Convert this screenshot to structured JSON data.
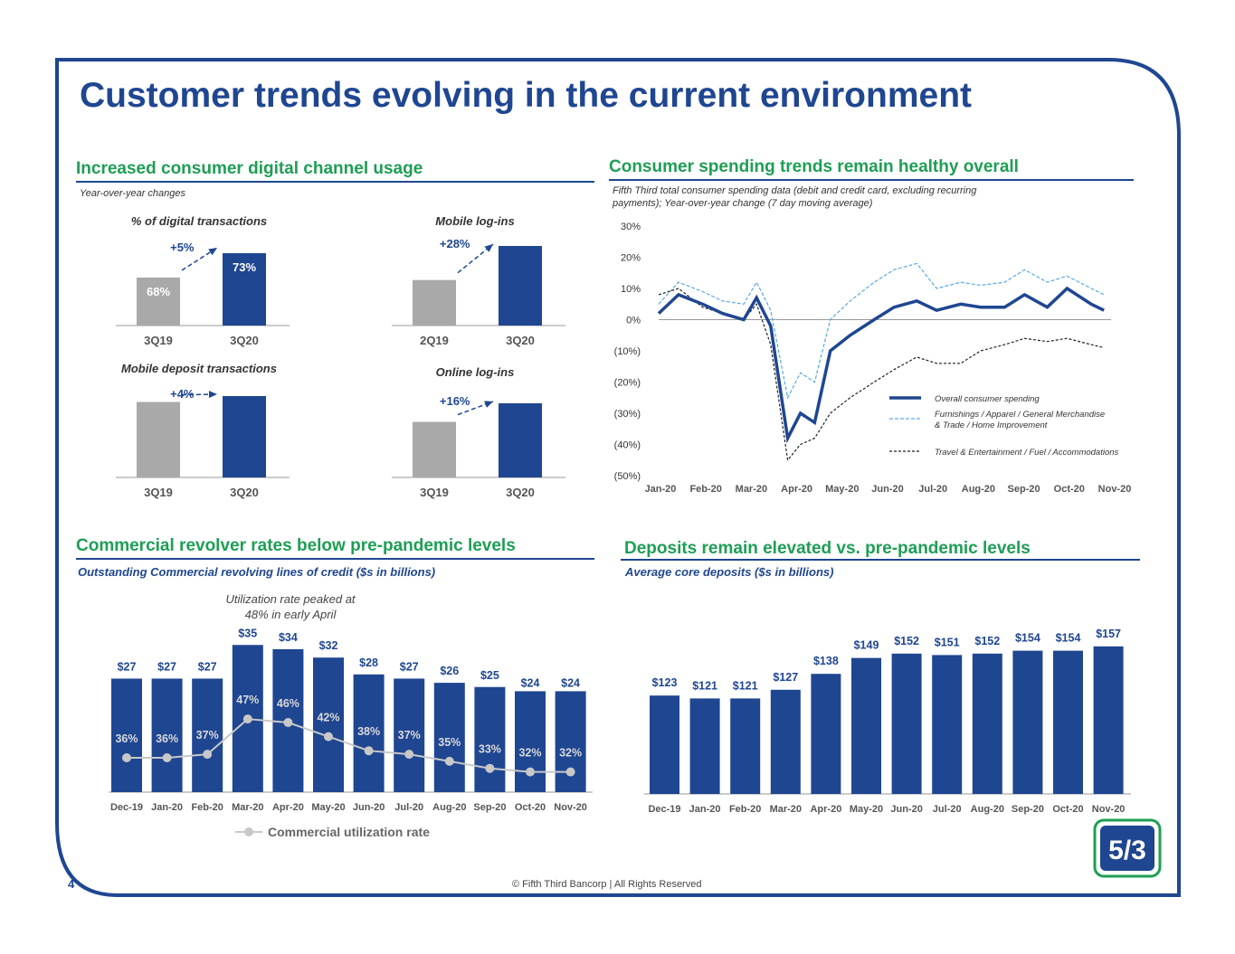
{
  "page": {
    "title": "Customer trends evolving in the current environment",
    "page_number": "4",
    "footer": "© Fifth Third Bancorp | All Rights Reserved",
    "logo": "fifth-third-logo"
  },
  "colors": {
    "navy": "#1f4691",
    "green": "#1e9e55",
    "gray_bar": "#a9a9a9",
    "light_blue": "#5aa9e6"
  },
  "sections": {
    "digital": {
      "title": "Increased consumer digital channel usage",
      "subtitle": "Year-over-year changes"
    },
    "spending": {
      "title": "Consumer spending trends remain healthy overall",
      "subtitle": "Fifth Third total consumer spending data (debit and credit card, excluding recurring payments); Year-over-year change (7 day moving average)"
    },
    "revolver": {
      "title": "Commercial revolver rates below pre-pandemic levels",
      "subtitle": "Outstanding Commercial revolving lines of credit ($s in billions)",
      "annotation": "Utilization rate peaked at 48% in early April"
    },
    "deposits": {
      "title": "Deposits remain elevated vs. pre-pandemic levels",
      "subtitle": "Average core deposits ($s in billions)"
    }
  },
  "chart_data": [
    {
      "id": "digital-transactions",
      "type": "bar",
      "title": "% of digital transactions",
      "categories": [
        "3Q19",
        "3Q20"
      ],
      "values": [
        68,
        73
      ],
      "value_labels": [
        "68%",
        "73%"
      ],
      "change_label": "+5%"
    },
    {
      "id": "mobile-logins",
      "type": "bar",
      "title": "Mobile log-ins",
      "categories": [
        "2Q19",
        "3Q20"
      ],
      "values": [
        100,
        128
      ],
      "value_labels": [
        "",
        ""
      ],
      "change_label": "+28%"
    },
    {
      "id": "mobile-deposits",
      "type": "bar",
      "title": "Mobile deposit transactions",
      "categories": [
        "3Q19",
        "3Q20"
      ],
      "values": [
        100,
        104
      ],
      "value_labels": [
        "",
        ""
      ],
      "change_label": "+4%"
    },
    {
      "id": "online-logins",
      "type": "bar",
      "title": "Online log-ins",
      "categories": [
        "3Q19",
        "3Q20"
      ],
      "values": [
        100,
        116
      ],
      "value_labels": [
        "",
        ""
      ],
      "change_label": "+16%"
    },
    {
      "id": "consumer-spending",
      "type": "line",
      "x_labels": [
        "Jan-20",
        "Feb-20",
        "Mar-20",
        "Apr-20",
        "May-20",
        "Jun-20",
        "Jul-20",
        "Aug-20",
        "Sep-20",
        "Oct-20",
        "Nov-20"
      ],
      "y_ticks": [
        "30%",
        "20%",
        "10%",
        "0%",
        "(10%)",
        "(20%)",
        "(30%)",
        "(40%)",
        "(50%)"
      ],
      "ylim": [
        -50,
        30
      ],
      "grid": false,
      "legend_position": "right",
      "series": [
        {
          "name": "Overall consumer spending",
          "style": "solid-thick",
          "x": [
            "2020-01-01",
            "2020-01-15",
            "2020-02-01",
            "2020-02-15",
            "2020-03-01",
            "2020-03-10",
            "2020-03-20",
            "2020-04-01",
            "2020-04-10",
            "2020-04-20",
            "2020-05-01",
            "2020-05-15",
            "2020-06-01",
            "2020-06-15",
            "2020-07-01",
            "2020-07-15",
            "2020-08-01",
            "2020-08-15",
            "2020-09-01",
            "2020-09-15",
            "2020-10-01",
            "2020-10-15",
            "2020-11-01",
            "2020-11-10"
          ],
          "y": [
            2,
            8,
            5,
            2,
            0,
            7,
            -2,
            -38,
            -30,
            -33,
            -10,
            -5,
            0,
            4,
            6,
            3,
            5,
            4,
            4,
            8,
            4,
            10,
            5,
            3
          ]
        },
        {
          "name": "Furnishings / Apparel / General Merchandise & Trade /  Home Improvement",
          "style": "dashed-light",
          "x": [
            "2020-01-01",
            "2020-01-15",
            "2020-02-01",
            "2020-02-15",
            "2020-03-01",
            "2020-03-10",
            "2020-03-20",
            "2020-04-01",
            "2020-04-10",
            "2020-04-20",
            "2020-05-01",
            "2020-05-15",
            "2020-06-01",
            "2020-06-15",
            "2020-07-01",
            "2020-07-15",
            "2020-08-01",
            "2020-08-15",
            "2020-09-01",
            "2020-09-15",
            "2020-10-01",
            "2020-10-15",
            "2020-11-01",
            "2020-11-10"
          ],
          "y": [
            5,
            12,
            9,
            6,
            5,
            12,
            3,
            -25,
            -17,
            -20,
            0,
            6,
            12,
            16,
            18,
            10,
            12,
            11,
            12,
            16,
            12,
            14,
            10,
            8
          ]
        },
        {
          "name": "Travel & Entertainment / Fuel / Accommodations",
          "style": "dashed-black",
          "x": [
            "2020-01-01",
            "2020-01-15",
            "2020-02-01",
            "2020-02-15",
            "2020-03-01",
            "2020-03-10",
            "2020-03-20",
            "2020-04-01",
            "2020-04-10",
            "2020-04-20",
            "2020-05-01",
            "2020-05-15",
            "2020-06-01",
            "2020-06-15",
            "2020-07-01",
            "2020-07-15",
            "2020-08-01",
            "2020-08-15",
            "2020-09-01",
            "2020-09-15",
            "2020-10-01",
            "2020-10-15",
            "2020-11-01",
            "2020-11-10"
          ],
          "y": [
            8,
            10,
            4,
            2,
            0,
            5,
            -8,
            -45,
            -40,
            -38,
            -30,
            -25,
            -20,
            -16,
            -12,
            -14,
            -14,
            -10,
            -8,
            -6,
            -7,
            -6,
            -8,
            -9
          ]
        }
      ]
    },
    {
      "id": "commercial-revolver",
      "type": "bar",
      "categories": [
        "Dec-19",
        "Jan-20",
        "Feb-20",
        "Mar-20",
        "Apr-20",
        "May-20",
        "Jun-20",
        "Jul-20",
        "Aug-20",
        "Sep-20",
        "Oct-20",
        "Nov-20"
      ],
      "values": [
        27,
        27,
        27,
        35,
        34,
        32,
        28,
        27,
        26,
        25,
        24,
        24
      ],
      "value_labels": [
        "$27",
        "$27",
        "$27",
        "$35",
        "$34",
        "$32",
        "$28",
        "$27",
        "$26",
        "$25",
        "$24",
        "$24"
      ],
      "series": [
        {
          "name": "Commercial utilization rate",
          "type": "line",
          "values": [
            36,
            36,
            37,
            47,
            46,
            42,
            38,
            37,
            35,
            33,
            32,
            32
          ],
          "value_labels": [
            "36%",
            "36%",
            "37%",
            "47%",
            "46%",
            "42%",
            "38%",
            "37%",
            "35%",
            "33%",
            "32%",
            "32%"
          ]
        }
      ]
    },
    {
      "id": "core-deposits",
      "type": "bar",
      "categories": [
        "Dec-19",
        "Jan-20",
        "Feb-20",
        "Mar-20",
        "Apr-20",
        "May-20",
        "Jun-20",
        "Jul-20",
        "Aug-20",
        "Sep-20",
        "Oct-20",
        "Nov-20"
      ],
      "values": [
        123,
        121,
        121,
        127,
        138,
        149,
        152,
        151,
        152,
        154,
        154,
        157
      ],
      "value_labels": [
        "$123",
        "$121",
        "$121",
        "$127",
        "$138",
        "$149",
        "$152",
        "$151",
        "$152",
        "$154",
        "$154",
        "$157"
      ]
    }
  ]
}
